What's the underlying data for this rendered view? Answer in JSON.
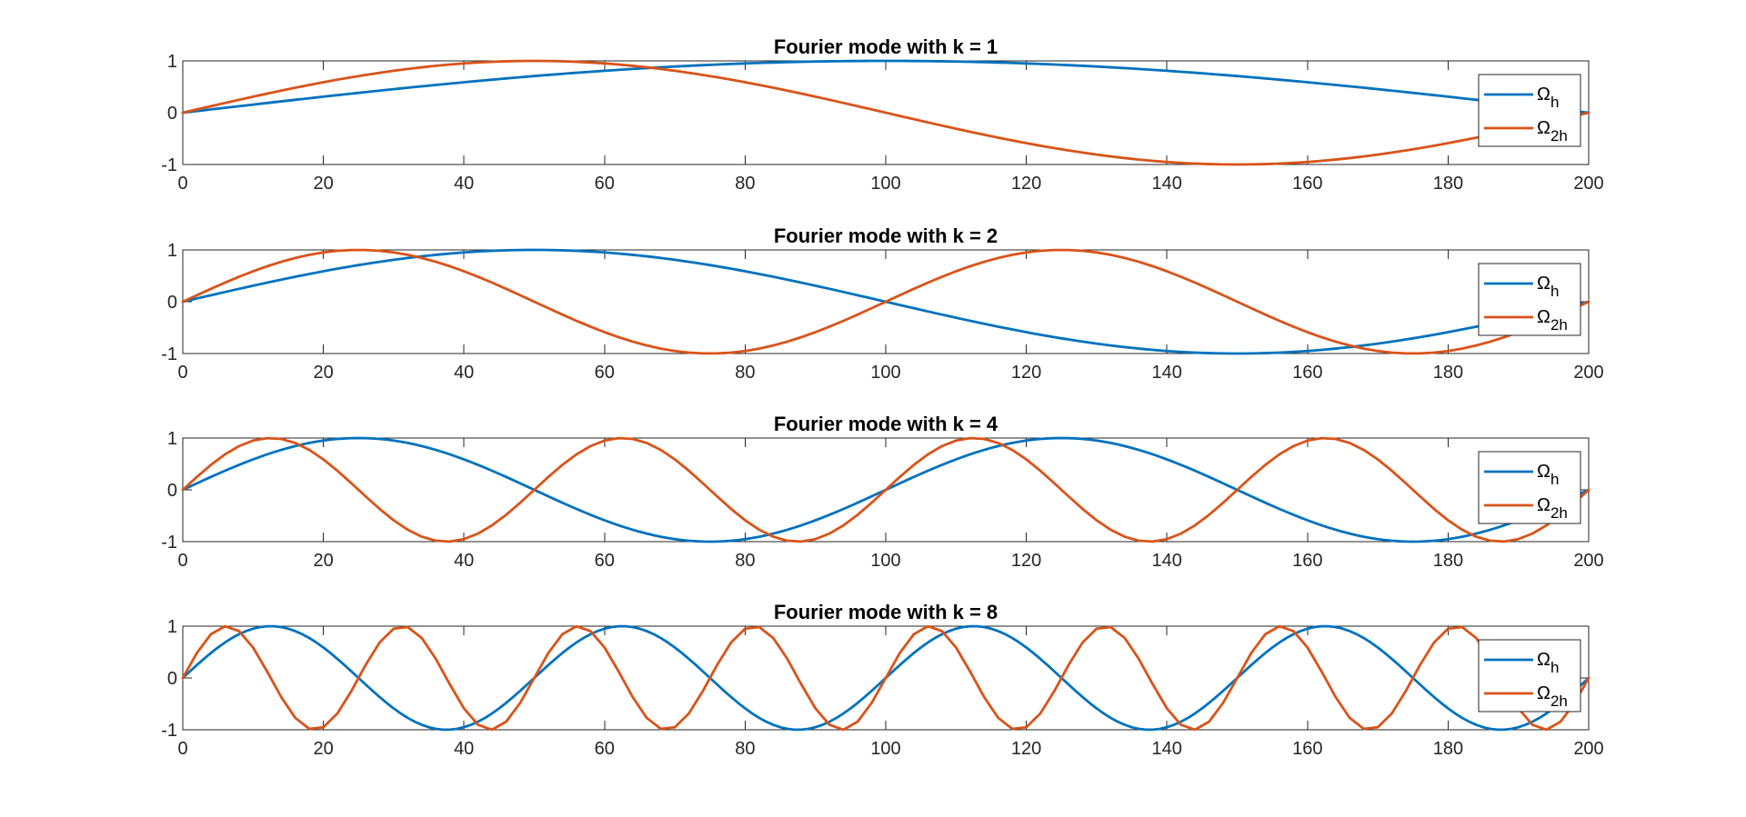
{
  "figure": {
    "background": "#ffffff",
    "axis_color": "#262626"
  },
  "chart_data": [
    {
      "type": "line",
      "title": "Fourier mode with k = 1",
      "k": 1,
      "xlim": [
        0,
        200
      ],
      "ylim": [
        -1,
        1
      ],
      "xticks": [
        "0",
        "20",
        "40",
        "60",
        "80",
        "100",
        "120",
        "140",
        "160",
        "180",
        "200"
      ],
      "yticks": [
        "1",
        "0",
        "-1"
      ],
      "grid": false,
      "legend_position": "right",
      "series": [
        {
          "name": "Ωh",
          "name_base": "Ω",
          "name_sub": "h",
          "color": "#0072BD",
          "grid_points": 200,
          "formula": "sin(pi*k*x/200)"
        },
        {
          "name": "Ω2h",
          "name_base": "Ω",
          "name_sub": "2h",
          "color": "#D95319",
          "grid_points": 100,
          "formula": "sin(2*pi*k*x/200)"
        }
      ]
    },
    {
      "type": "line",
      "title": "Fourier mode with k = 2",
      "k": 2,
      "xlim": [
        0,
        200
      ],
      "ylim": [
        -1,
        1
      ],
      "xticks": [
        "0",
        "20",
        "40",
        "60",
        "80",
        "100",
        "120",
        "140",
        "160",
        "180",
        "200"
      ],
      "yticks": [
        "1",
        "0",
        "-1"
      ],
      "grid": false,
      "legend_position": "right",
      "series": [
        {
          "name": "Ωh",
          "name_base": "Ω",
          "name_sub": "h",
          "color": "#0072BD",
          "grid_points": 200,
          "formula": "sin(pi*k*x/200)"
        },
        {
          "name": "Ω2h",
          "name_base": "Ω",
          "name_sub": "2h",
          "color": "#D95319",
          "grid_points": 100,
          "formula": "sin(2*pi*k*x/200)"
        }
      ]
    },
    {
      "type": "line",
      "title": "Fourier mode with k = 4",
      "k": 4,
      "xlim": [
        0,
        200
      ],
      "ylim": [
        -1,
        1
      ],
      "xticks": [
        "0",
        "20",
        "40",
        "60",
        "80",
        "100",
        "120",
        "140",
        "160",
        "180",
        "200"
      ],
      "yticks": [
        "1",
        "0",
        "-1"
      ],
      "grid": false,
      "legend_position": "right",
      "series": [
        {
          "name": "Ωh",
          "name_base": "Ω",
          "name_sub": "h",
          "color": "#0072BD",
          "grid_points": 200,
          "formula": "sin(pi*k*x/200)"
        },
        {
          "name": "Ω2h",
          "name_base": "Ω",
          "name_sub": "2h",
          "color": "#D95319",
          "grid_points": 100,
          "formula": "sin(2*pi*k*x/200)"
        }
      ]
    },
    {
      "type": "line",
      "title": "Fourier mode with k = 8",
      "k": 8,
      "xlim": [
        0,
        200
      ],
      "ylim": [
        -1,
        1
      ],
      "xticks": [
        "0",
        "20",
        "40",
        "60",
        "80",
        "100",
        "120",
        "140",
        "160",
        "180",
        "200"
      ],
      "yticks": [
        "1",
        "0",
        "-1"
      ],
      "grid": false,
      "legend_position": "right",
      "series": [
        {
          "name": "Ωh",
          "name_base": "Ω",
          "name_sub": "h",
          "color": "#0072BD",
          "grid_points": 200,
          "formula": "sin(pi*k*x/200)"
        },
        {
          "name": "Ω2h",
          "name_base": "Ω",
          "name_sub": "2h",
          "color": "#D95319",
          "grid_points": 100,
          "formula": "sin(2*pi*k*x/200)"
        }
      ]
    }
  ]
}
